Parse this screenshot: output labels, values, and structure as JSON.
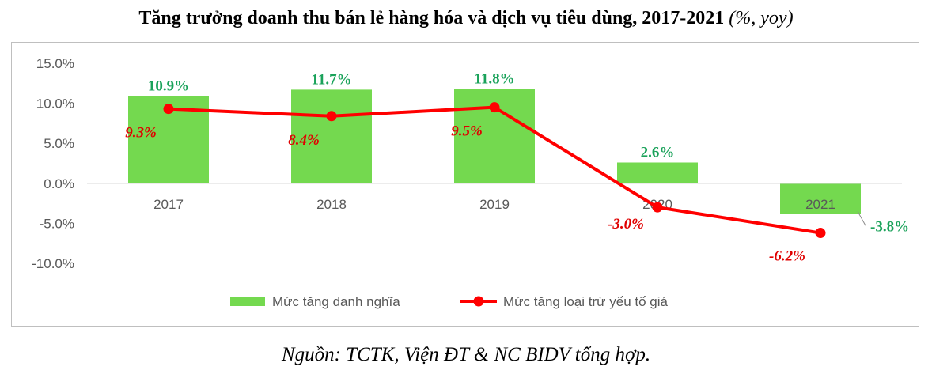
{
  "title": {
    "main": "Tăng trưởng doanh thu bán lẻ hàng hóa và dịch vụ tiêu dùng, 2017-2021",
    "unit": "(%, yoy)"
  },
  "source": "Nguồn: TCTK, Viện ĐT & NC BIDV tổng hợp.",
  "colors": {
    "bar": "#74d94f",
    "line": "#ff0000",
    "bar_label": "#1aa25a",
    "line_label": "#e00000"
  },
  "chart_data": {
    "type": "bar",
    "categories": [
      "2017",
      "2018",
      "2019",
      "2020",
      "2021"
    ],
    "series": [
      {
        "name": "Mức tăng danh nghĩa",
        "type": "bar",
        "values": [
          10.9,
          11.7,
          11.8,
          2.6,
          -3.8
        ],
        "labels": [
          "10.9%",
          "11.7%",
          "11.8%",
          "2.6%",
          "-3.8%"
        ]
      },
      {
        "name": "Mức tăng loại trừ yếu tố giá",
        "type": "line",
        "values": [
          9.3,
          8.4,
          9.5,
          -3.0,
          -6.2
        ],
        "labels": [
          "9.3%",
          "8.4%",
          "9.5%",
          "-3.0%",
          "-6.2%"
        ]
      }
    ],
    "y_ticks": [
      "15.0%",
      "10.0%",
      "5.0%",
      "0.0%",
      "-5.0%",
      "-10.0%"
    ],
    "y_tick_values": [
      15,
      10,
      5,
      0,
      -5,
      -10
    ],
    "ylim": [
      -10,
      15
    ],
    "grid": false,
    "legend_position": "bottom"
  }
}
